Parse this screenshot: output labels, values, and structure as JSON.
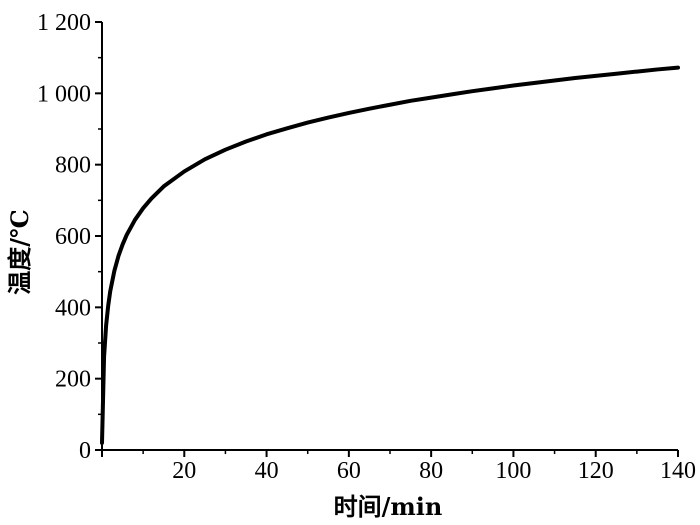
{
  "chart_data": {
    "type": "line",
    "xlabel": "时间/min",
    "ylabel": "温度/℃",
    "xlim": [
      0,
      140
    ],
    "ylim": [
      0,
      1200
    ],
    "x_ticks": [
      20,
      40,
      60,
      80,
      100,
      120,
      140
    ],
    "y_ticks": [
      0,
      200,
      400,
      600,
      800,
      1000,
      1200
    ],
    "x_tick_labels": [
      "20",
      "40",
      "60",
      "80",
      "100",
      "120",
      "140"
    ],
    "y_tick_labels": [
      "0",
      "200",
      "400",
      "600",
      "800",
      "1 000",
      "1 200"
    ],
    "grid": false,
    "series": [
      {
        "x": [
          0,
          0.5,
          1,
          1.5,
          2,
          3,
          4,
          5,
          6,
          8,
          10,
          12,
          15,
          20,
          25,
          30,
          35,
          40,
          45,
          50,
          55,
          60,
          65,
          70,
          75,
          80,
          85,
          90,
          95,
          100,
          105,
          110,
          115,
          120,
          125,
          130,
          135,
          140
        ],
        "values": [
          20,
          261,
          349,
          404,
          445,
          502,
          544,
          576,
          603,
          645,
          678,
          705,
          739,
          781,
          815,
          842,
          865,
          885,
          902,
          918,
          932,
          945,
          957,
          968,
          979,
          988,
          997,
          1006,
          1014,
          1022,
          1029,
          1036,
          1043,
          1049,
          1055,
          1061,
          1067,
          1072
        ]
      }
    ]
  }
}
